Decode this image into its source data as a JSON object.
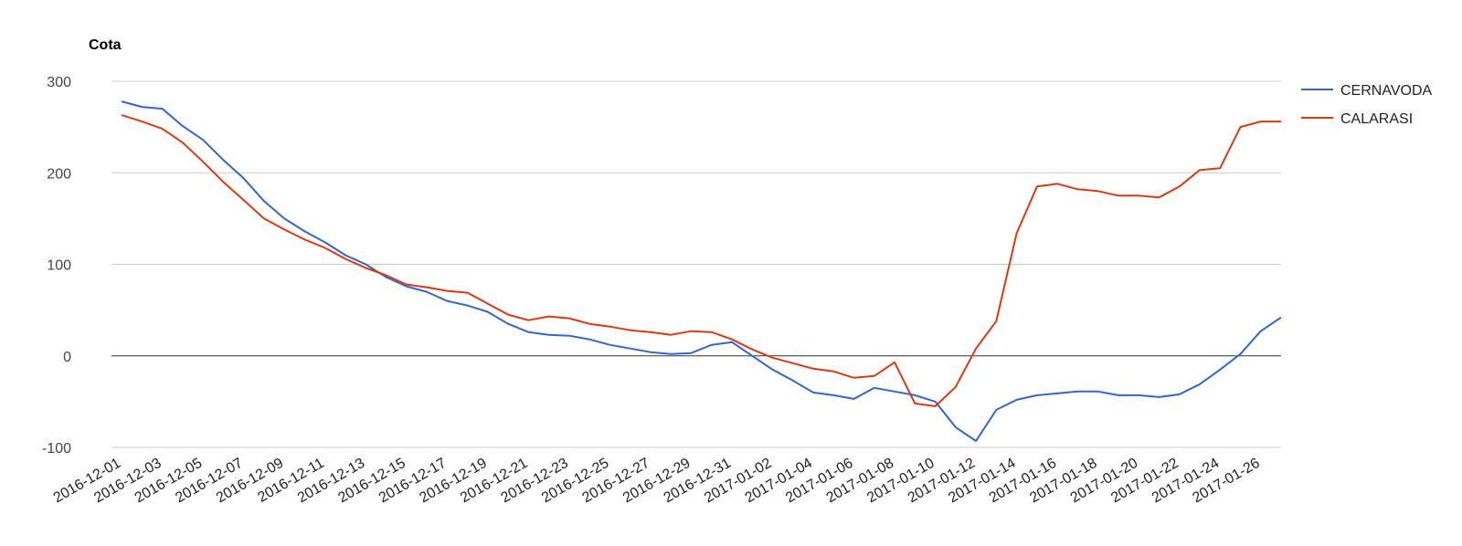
{
  "chart_data": {
    "type": "line",
    "ylabel": "Cota",
    "ylim": [
      -100,
      300
    ],
    "yticks": [
      "300",
      "200",
      "100",
      "0",
      "-100"
    ],
    "ytick_values": [
      300,
      200,
      100,
      0,
      -100
    ],
    "grid": true,
    "legend_position": "right",
    "x": [
      "2016-12-01",
      "2016-12-02",
      "2016-12-03",
      "2016-12-04",
      "2016-12-05",
      "2016-12-06",
      "2016-12-07",
      "2016-12-08",
      "2016-12-09",
      "2016-12-10",
      "2016-12-11",
      "2016-12-12",
      "2016-12-13",
      "2016-12-14",
      "2016-12-15",
      "2016-12-16",
      "2016-12-17",
      "2016-12-18",
      "2016-12-19",
      "2016-12-20",
      "2016-12-21",
      "2016-12-22",
      "2016-12-23",
      "2016-12-24",
      "2016-12-25",
      "2016-12-26",
      "2016-12-27",
      "2016-12-28",
      "2016-12-29",
      "2016-12-30",
      "2016-12-31",
      "2017-01-01",
      "2017-01-02",
      "2017-01-03",
      "2017-01-04",
      "2017-01-05",
      "2017-01-06",
      "2017-01-07",
      "2017-01-08",
      "2017-01-09",
      "2017-01-10",
      "2017-01-11",
      "2017-01-12",
      "2017-01-13",
      "2017-01-14",
      "2017-01-15",
      "2017-01-16",
      "2017-01-17",
      "2017-01-18",
      "2017-01-19",
      "2017-01-20",
      "2017-01-21",
      "2017-01-22",
      "2017-01-23",
      "2017-01-24",
      "2017-01-25",
      "2017-01-26",
      "2017-01-27"
    ],
    "xticks": [
      "2016-12-01",
      "2016-12-03",
      "2016-12-05",
      "2016-12-07",
      "2016-12-09",
      "2016-12-11",
      "2016-12-13",
      "2016-12-15",
      "2016-12-17",
      "2016-12-19",
      "2016-12-21",
      "2016-12-23",
      "2016-12-25",
      "2016-12-27",
      "2016-12-29",
      "2016-12-31",
      "2017-01-02",
      "2017-01-04",
      "2017-01-06",
      "2017-01-08",
      "2017-01-10",
      "2017-01-12",
      "2017-01-14",
      "2017-01-16",
      "2017-01-18",
      "2017-01-20",
      "2017-01-22",
      "2017-01-24",
      "2017-01-26"
    ],
    "series": [
      {
        "name": "CERNAVODA",
        "color": "#3366cc",
        "values": [
          278,
          272,
          270,
          251,
          236,
          214,
          194,
          169,
          150,
          136,
          124,
          110,
          100,
          86,
          76,
          70,
          60,
          55,
          48,
          35,
          26,
          23,
          22,
          18,
          12,
          8,
          4,
          2,
          3,
          12,
          15,
          0,
          -15,
          -27,
          -40,
          -43,
          -47,
          -35,
          -39,
          -43,
          -50,
          -78,
          -93,
          -59,
          -48,
          -43,
          -41,
          -39,
          -39,
          -43,
          -43,
          -45,
          -42,
          -31,
          -15,
          2,
          27,
          42
        ]
      },
      {
        "name": "CALARASI",
        "color": "#dc3912",
        "values": [
          263,
          256,
          248,
          233,
          212,
          190,
          170,
          150,
          138,
          127,
          118,
          106,
          96,
          88,
          78,
          75,
          71,
          69,
          57,
          45,
          39,
          43,
          41,
          35,
          32,
          28,
          26,
          23,
          27,
          26,
          18,
          7,
          -2,
          -8,
          -14,
          -17,
          -24,
          -22,
          -7,
          -52,
          -55,
          -34,
          8,
          38,
          134,
          185,
          188,
          182,
          180,
          175,
          175,
          173,
          185,
          203,
          205,
          250,
          256,
          256
        ]
      }
    ]
  }
}
